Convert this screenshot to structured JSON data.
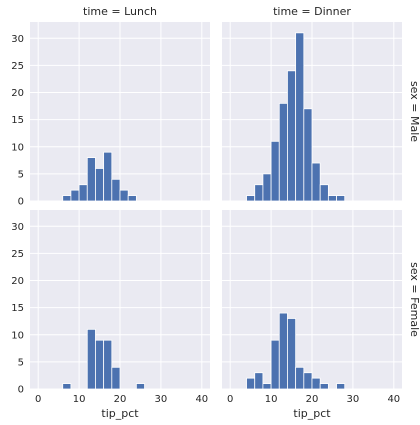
{
  "chart_data": {
    "type": "bar",
    "chart_kind": "faceted-histogram",
    "x_variable": "tip_pct",
    "xlabel": "tip_pct",
    "ylabel": "",
    "xlim": [
      -2,
      42
    ],
    "ylim": [
      0,
      33
    ],
    "x_ticks": [
      0,
      10,
      20,
      30,
      40
    ],
    "y_ticks": [
      0,
      5,
      10,
      15,
      20,
      25,
      30
    ],
    "bin_edges": [
      4,
      6,
      8,
      10,
      12,
      14,
      16,
      18,
      20,
      22,
      24,
      26,
      28,
      30,
      32,
      34,
      36,
      38
    ],
    "bar_color": "#4c72b0",
    "background_color": "#eaeaf2",
    "grid": true,
    "col_titles": [
      "time = Lunch",
      "time = Dinner"
    ],
    "row_titles": [
      "sex = Male",
      "sex = Female"
    ],
    "facets": [
      {
        "row": 0,
        "col": 0,
        "counts": [
          0,
          1,
          2,
          3,
          8,
          6,
          9,
          4,
          2,
          1,
          0,
          0,
          0,
          0,
          0,
          0,
          0
        ]
      },
      {
        "row": 0,
        "col": 1,
        "counts": [
          1,
          3,
          5,
          11,
          18,
          24,
          31,
          17,
          7,
          3,
          1,
          1,
          0,
          0,
          0,
          0,
          0
        ]
      },
      {
        "row": 1,
        "col": 0,
        "counts": [
          0,
          1,
          0,
          0,
          11,
          9,
          9,
          4,
          0,
          0,
          1,
          0,
          0,
          0,
          0,
          0,
          0
        ]
      },
      {
        "row": 1,
        "col": 1,
        "counts": [
          2,
          3,
          1,
          9,
          14,
          13,
          4,
          3,
          2,
          1,
          0,
          1,
          0,
          0,
          0,
          0,
          0
        ]
      }
    ]
  }
}
